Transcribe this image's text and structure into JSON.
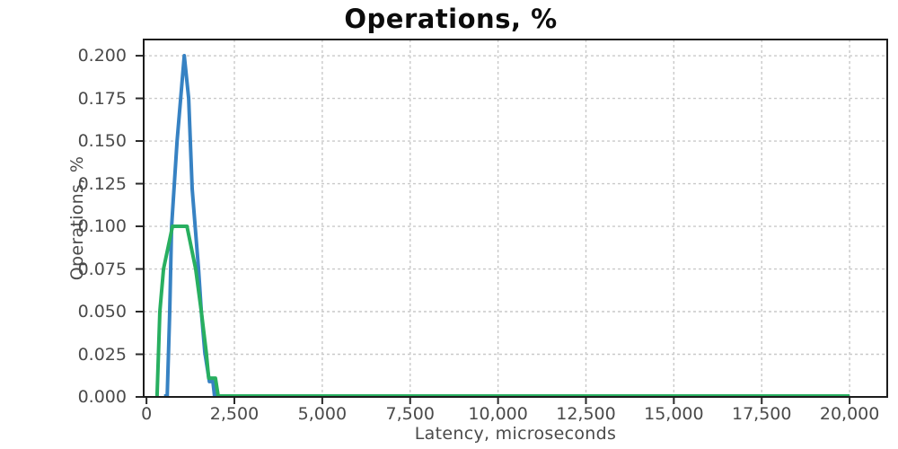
{
  "chart_data": {
    "type": "line",
    "title": "Operations, %",
    "xlabel": "Latency, microseconds",
    "ylabel": "Operations, %",
    "xlim": [
      -80,
      21070
    ],
    "ylim": [
      0,
      0.2095
    ],
    "grid": {
      "style": "dashed",
      "color": "#c9c9c9"
    },
    "frame_color": "#1c1c1c",
    "tick_mark_color": "#2a2a2a",
    "tick_label_color": "#4a4a4a",
    "background": "#ffffff",
    "legend": "none",
    "x_ticks": [
      {
        "value": 0,
        "label": "0"
      },
      {
        "value": 2500,
        "label": "2,500"
      },
      {
        "value": 5000,
        "label": "5,000"
      },
      {
        "value": 7500,
        "label": "7,500"
      },
      {
        "value": 10000,
        "label": "10,000"
      },
      {
        "value": 12500,
        "label": "12,500"
      },
      {
        "value": 15000,
        "label": "15,000"
      },
      {
        "value": 17500,
        "label": "17,500"
      },
      {
        "value": 20000,
        "label": "20,000"
      }
    ],
    "y_ticks": [
      {
        "value": 0,
        "label": "0.000"
      },
      {
        "value": 0.025,
        "label": "0.025"
      },
      {
        "value": 0.05,
        "label": "0.050"
      },
      {
        "value": 0.075,
        "label": "0.075"
      },
      {
        "value": 0.1,
        "label": "0.100"
      },
      {
        "value": 0.125,
        "label": "0.125"
      },
      {
        "value": 0.15,
        "label": "0.150"
      },
      {
        "value": 0.175,
        "label": "0.175"
      },
      {
        "value": 0.2,
        "label": "0.200"
      }
    ],
    "series": [
      {
        "name": "blue-series",
        "color": "#3782c3",
        "points": [
          [
            500,
            0
          ],
          [
            590,
            0
          ],
          [
            660,
            0.05
          ],
          [
            715,
            0.1
          ],
          [
            870,
            0.15
          ],
          [
            1075,
            0.2
          ],
          [
            1200,
            0.175
          ],
          [
            1300,
            0.122
          ],
          [
            1480,
            0.075
          ],
          [
            1560,
            0.05
          ],
          [
            1660,
            0.026
          ],
          [
            1790,
            0.009
          ],
          [
            1890,
            0.009
          ],
          [
            1935,
            0
          ],
          [
            20000,
            0
          ]
        ]
      },
      {
        "name": "green-series",
        "color": "#28af60",
        "points": [
          [
            300,
            0
          ],
          [
            380,
            0.05
          ],
          [
            485,
            0.075
          ],
          [
            740,
            0.1
          ],
          [
            1150,
            0.1
          ],
          [
            1400,
            0.075
          ],
          [
            1560,
            0.05
          ],
          [
            1700,
            0.026
          ],
          [
            1770,
            0.011
          ],
          [
            1960,
            0.011
          ],
          [
            2040,
            0
          ],
          [
            20000,
            0
          ]
        ]
      }
    ]
  }
}
